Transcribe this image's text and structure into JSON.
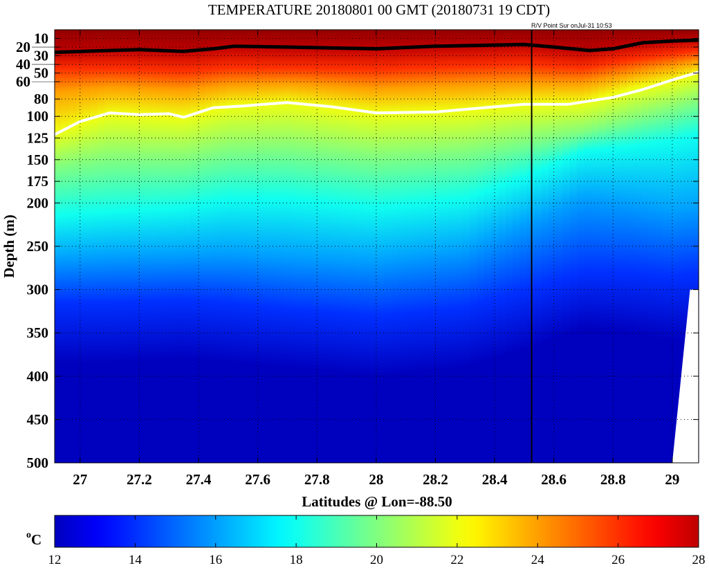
{
  "chart_data": {
    "type": "heatmap",
    "title": "TEMPERATURE 20180801 00 GMT (20180731 19 CDT)",
    "subtitle": "R/V Point Sur onJul-31 10:53",
    "xlabel": "Latitudes @ Lon=-88.50",
    "ylabel": "Depth (m)",
    "xlim": [
      26.914,
      29.089
    ],
    "ylim": [
      0,
      500
    ],
    "y_reversed": true,
    "x_ticks": [
      27,
      27.2,
      27.4,
      27.6,
      27.8,
      28,
      28.2,
      28.4,
      28.6,
      28.8,
      29
    ],
    "x_tick_labels": [
      "27",
      "27.2",
      "27.4",
      "27.6",
      "27.8",
      "28",
      "28.2",
      "28.4",
      "28.6",
      "28.8",
      "29"
    ],
    "y_ticks": [
      10,
      20,
      30,
      40,
      50,
      60,
      80,
      100,
      125,
      150,
      175,
      200,
      250,
      300,
      350,
      400,
      450,
      500
    ],
    "y_tick_labels": [
      "10",
      "20",
      "30",
      "40",
      "50",
      "60",
      "80",
      "100",
      "125",
      "150",
      "175",
      "200",
      "250",
      "300",
      "350",
      "400",
      "450",
      "500"
    ],
    "grid": true,
    "colorbar": {
      "label_base": "o",
      "label_unit": "C",
      "min": 12,
      "max": 28,
      "ticks": [
        12,
        14,
        16,
        18,
        20,
        22,
        24,
        26,
        28
      ],
      "tick_labels": [
        "12",
        "14",
        "16",
        "18",
        "20",
        "22",
        "24",
        "26",
        "28"
      ],
      "colormap": "jet"
    },
    "latitudes": [
      26.9,
      27.1,
      27.35,
      27.5,
      27.7,
      28.0,
      28.3,
      28.5,
      28.7,
      28.85,
      29.0,
      29.1
    ],
    "isotherm_depths": [
      {
        "temp": 28.8,
        "depths": [
          0,
          0,
          0,
          0,
          0,
          0,
          0,
          0,
          0,
          0,
          0,
          0
        ]
      },
      {
        "temp": 28,
        "depths": [
          26,
          23,
          25,
          20,
          21,
          22,
          19,
          17,
          24,
          17,
          13,
          12
        ]
      },
      {
        "temp": 26,
        "depths": [
          45,
          45,
          48,
          44,
          44,
          46,
          42,
          40,
          44,
          35,
          28,
          24
        ]
      },
      {
        "temp": 24,
        "depths": [
          72,
          66,
          70,
          64,
          62,
          68,
          64,
          62,
          62,
          52,
          42,
          36
        ]
      },
      {
        "temp": 22,
        "depths": [
          121,
          96,
          101,
          88,
          84,
          96,
          93,
          86,
          84,
          69,
          59,
          49
        ]
      },
      {
        "temp": 20,
        "depths": [
          160,
          150,
          150,
          140,
          138,
          148,
          142,
          130,
          118,
          105,
          92,
          82
        ]
      },
      {
        "temp": 18,
        "depths": [
          215,
          210,
          205,
          195,
          195,
          205,
          195,
          170,
          140,
          135,
          128,
          120
        ]
      },
      {
        "temp": 16,
        "depths": [
          265,
          262,
          260,
          258,
          262,
          268,
          255,
          225,
          195,
          200,
          210,
          205
        ]
      },
      {
        "temp": 14,
        "depths": [
          315,
          315,
          312,
          315,
          322,
          330,
          320,
          300,
          280,
          280,
          285,
          280
        ]
      },
      {
        "temp": 12,
        "depths": [
          385,
          385,
          380,
          385,
          390,
          400,
          390,
          370,
          345,
          350,
          360,
          360
        ]
      },
      {
        "temp": 10,
        "depths": [
          520,
          520,
          520,
          520,
          520,
          520,
          520,
          520,
          520,
          520,
          520,
          520
        ]
      }
    ],
    "line_28C": {
      "color": "#000000",
      "lat": [
        26.914,
        27.1,
        27.2,
        27.35,
        27.45,
        27.52,
        27.7,
        28.0,
        28.2,
        28.5,
        28.6,
        28.72,
        28.8,
        28.9,
        29.0,
        29.089
      ],
      "depth": [
        26,
        24,
        23,
        25,
        22,
        19,
        20,
        22,
        19,
        17,
        20,
        24,
        22,
        15,
        13,
        12
      ]
    },
    "line_22C": {
      "color": "#ffffff",
      "lat": [
        26.914,
        27.0,
        27.1,
        27.2,
        27.3,
        27.35,
        27.45,
        27.55,
        27.7,
        27.85,
        28.0,
        28.2,
        28.4,
        28.5,
        28.65,
        28.8,
        28.9,
        29.0,
        29.089
      ],
      "depth": [
        121,
        106,
        96,
        98,
        97,
        101,
        90,
        88,
        84,
        89,
        96,
        95,
        89,
        86,
        86,
        78,
        69,
        58,
        49
      ]
    },
    "section_line_lat": 28.525,
    "no_data_mask": {
      "lat": [
        29.06,
        29.089,
        29.089,
        29.0
      ],
      "depth": [
        300,
        300,
        500,
        500
      ]
    }
  }
}
